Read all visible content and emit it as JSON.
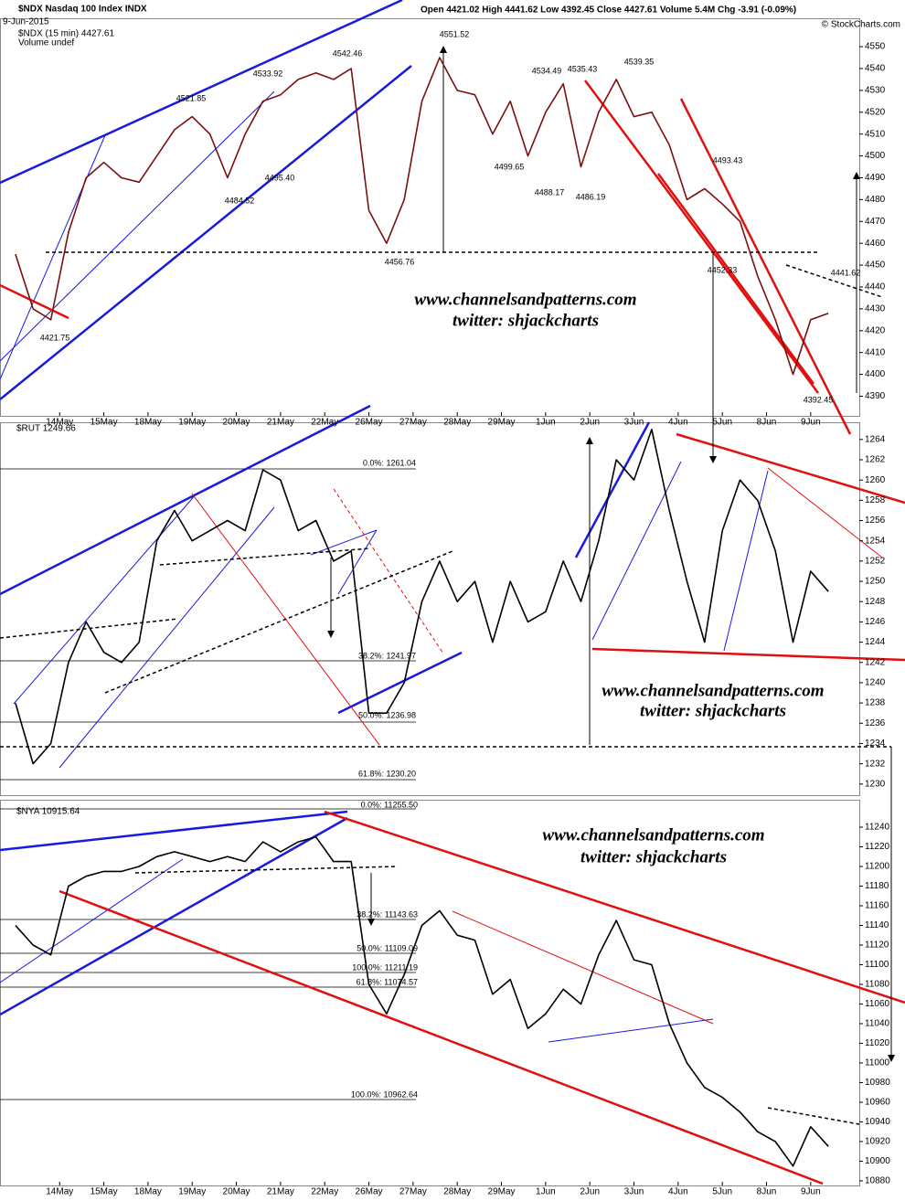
{
  "header": {
    "title": "$NDX Nasdaq 100 Index INDX",
    "date": "9-Jun-2015",
    "quote": "Open 4421.02 High 4441.62 Low 4392.45 Close 4427.61 Volume 5.4M Chg -3.91 (-0.09%)",
    "credit": "© StockCharts.com"
  },
  "chart_data": [
    {
      "type": "line",
      "title": "$NDX (15 min) 4427.61",
      "subtitle": "Volume undef",
      "watermark": [
        "www.channelsandpatterns.com",
        "twitter: shjackcharts"
      ],
      "x": [
        0,
        0.4,
        0.8,
        1.2,
        1.6,
        2,
        2.4,
        2.8,
        3.2,
        3.6,
        4,
        4.4,
        4.8,
        5.2,
        5.6,
        6,
        6.4,
        6.8,
        7.2,
        7.6,
        8,
        8.4,
        8.8,
        9.2,
        9.6,
        10,
        10.4,
        10.8,
        11.2,
        11.6,
        12,
        12.4,
        12.8,
        13.2,
        13.6,
        14,
        14.4,
        14.8,
        15.2,
        15.6,
        16,
        16.4,
        16.8,
        17.2,
        17.6,
        18,
        18.4
      ],
      "series": [
        {
          "color": "#7a1010",
          "values": [
            4455,
            4430,
            4425,
            4465,
            4490,
            4497,
            4490,
            4488,
            4500,
            4512,
            4518,
            4510,
            4490,
            4510,
            4525,
            4528,
            4535,
            4538,
            4535,
            4540,
            4475,
            4460,
            4480,
            4525,
            4545,
            4530,
            4528,
            4510,
            4525,
            4500,
            4520,
            4533,
            4495,
            4520,
            4535,
            4518,
            4520,
            4505,
            4480,
            4485,
            4478,
            4470,
            4445,
            4425,
            4400,
            4425,
            4428
          ]
        }
      ],
      "xlim": [
        -0.35,
        19.1
      ],
      "xticks": [
        {
          "value": 1,
          "label": "14May"
        },
        {
          "value": 2,
          "label": "15May"
        },
        {
          "value": 3,
          "label": "18May"
        },
        {
          "value": 4,
          "label": "19May"
        },
        {
          "value": 5,
          "label": "20May"
        },
        {
          "value": 6,
          "label": "21May"
        },
        {
          "value": 7,
          "label": "22May"
        },
        {
          "value": 8,
          "label": "26May"
        },
        {
          "value": 9,
          "label": "27May"
        },
        {
          "value": 10,
          "label": "28May"
        },
        {
          "value": 11,
          "label": "29May"
        },
        {
          "value": 12,
          "label": "1Jun"
        },
        {
          "value": 13,
          "label": "2Jun"
        },
        {
          "value": 14,
          "label": "3Jun"
        },
        {
          "value": 15,
          "label": "4Jun"
        },
        {
          "value": 16,
          "label": "5Jun"
        },
        {
          "value": 17,
          "label": "8Jun"
        },
        {
          "value": 18,
          "label": "9Jun"
        }
      ],
      "ylim": [
        4381,
        4563
      ],
      "yticks": [
        4390,
        4400,
        4410,
        4420,
        4430,
        4440,
        4450,
        4460,
        4470,
        4480,
        4490,
        4500,
        4510,
        4520,
        4530,
        4540,
        4550
      ],
      "annotations": [
        "4421.75",
        "4484.52",
        "4495.40",
        "4521.85",
        "4533.92",
        "4542.46",
        "4551.52",
        "4456.76",
        "4534.49",
        "4535.43",
        "4539.35",
        "4499.65",
        "4488.17",
        "4486.19",
        "4493.43",
        "4452.33",
        "4441.62",
        "4392.45"
      ]
    },
    {
      "type": "line",
      "title": "$RUT 1249.66",
      "watermark": [
        "www.channelsandpatterns.com",
        "twitter: shjackcharts"
      ],
      "x": [
        0,
        0.4,
        0.8,
        1.2,
        1.6,
        2,
        2.4,
        2.8,
        3.2,
        3.6,
        4,
        4.4,
        4.8,
        5.2,
        5.6,
        6,
        6.4,
        6.8,
        7.2,
        7.6,
        8,
        8.4,
        8.8,
        9.2,
        9.6,
        10,
        10.4,
        10.8,
        11.2,
        11.6,
        12,
        12.4,
        12.8,
        13.2,
        13.6,
        14,
        14.4,
        14.8,
        15.2,
        15.6,
        16,
        16.4,
        16.8,
        17.2,
        17.6,
        18,
        18.4
      ],
      "series": [
        {
          "color": "#000000",
          "values": [
            1238,
            1232,
            1234,
            1242,
            1246,
            1243,
            1242,
            1244,
            1254,
            1257,
            1254,
            1255,
            1256,
            1255,
            1261,
            1260,
            1255,
            1256,
            1252,
            1253,
            1237,
            1237,
            1240,
            1248,
            1252,
            1248,
            1250,
            1244,
            1250,
            1246,
            1247,
            1252,
            1248,
            1254,
            1262,
            1260,
            1265,
            1257,
            1250,
            1244,
            1255,
            1260,
            1258,
            1253,
            1244,
            1251,
            1249
          ]
        }
      ],
      "xlim": [
        -0.35,
        19.1
      ],
      "ylim": [
        1228.9,
        1265.7
      ],
      "yticks": [
        1230,
        1232,
        1234,
        1236,
        1238,
        1240,
        1242,
        1244,
        1246,
        1248,
        1250,
        1252,
        1254,
        1256,
        1258,
        1260,
        1262,
        1264
      ],
      "annotations": [
        "0.0%: 1261.04",
        "38.2%: 1241.97",
        "50.0%: 1236.98",
        "61.8%: 1230.20"
      ]
    },
    {
      "type": "line",
      "title": "$NYA 10915.64",
      "watermark": [
        "www.channelsandpatterns.com",
        "twitter: shjackcharts"
      ],
      "x": [
        0,
        0.4,
        0.8,
        1.2,
        1.6,
        2,
        2.4,
        2.8,
        3.2,
        3.6,
        4,
        4.4,
        4.8,
        5.2,
        5.6,
        6,
        6.4,
        6.8,
        7.2,
        7.6,
        8,
        8.4,
        8.8,
        9.2,
        9.6,
        10,
        10.4,
        10.8,
        11.2,
        11.6,
        12,
        12.4,
        12.8,
        13.2,
        13.6,
        14,
        14.4,
        14.8,
        15.2,
        15.6,
        16,
        16.4,
        16.8,
        17.2,
        17.6,
        18,
        18.4
      ],
      "series": [
        {
          "color": "#000000",
          "values": [
            11140,
            11120,
            11110,
            11180,
            11190,
            11195,
            11195,
            11200,
            11210,
            11215,
            11210,
            11205,
            11210,
            11205,
            11225,
            11215,
            11225,
            11230,
            11205,
            11205,
            11080,
            11050,
            11090,
            11140,
            11155,
            11130,
            11125,
            11070,
            11085,
            11035,
            11050,
            11075,
            11060,
            11110,
            11145,
            11105,
            11100,
            11040,
            11000,
            10975,
            10965,
            10950,
            10930,
            10920,
            10895,
            10935,
            10915
          ]
        }
      ],
      "xlim": [
        -0.35,
        19.1
      ],
      "xticks": [
        {
          "value": 1,
          "label": "14May"
        },
        {
          "value": 2,
          "label": "15May"
        },
        {
          "value": 3,
          "label": "18May"
        },
        {
          "value": 4,
          "label": "19May"
        },
        {
          "value": 5,
          "label": "20May"
        },
        {
          "value": 6,
          "label": "21May"
        },
        {
          "value": 7,
          "label": "22May"
        },
        {
          "value": 8,
          "label": "26May"
        },
        {
          "value": 9,
          "label": "27May"
        },
        {
          "value": 10,
          "label": "28May"
        },
        {
          "value": 11,
          "label": "29May"
        },
        {
          "value": 12,
          "label": "1Jun"
        },
        {
          "value": 13,
          "label": "2Jun"
        },
        {
          "value": 14,
          "label": "3Jun"
        },
        {
          "value": 15,
          "label": "4Jun"
        },
        {
          "value": 16,
          "label": "5Jun"
        },
        {
          "value": 17,
          "label": "8Jun"
        },
        {
          "value": 18,
          "label": "9Jun"
        }
      ],
      "ylim": [
        10875.3,
        11267.9
      ],
      "yticks": [
        10880,
        10900,
        10920,
        10940,
        10960,
        10980,
        11000,
        11020,
        11040,
        11060,
        11080,
        11100,
        11120,
        11140,
        11160,
        11180,
        11200,
        11220,
        11240
      ],
      "annotations": [
        "0.0%: 11255.50",
        "38.2%: 11143.63",
        "50.0%: 11109.09",
        "100.0%: 11211.19",
        "61.8%: 11074.57",
        "100.0%: 10962.64"
      ]
    }
  ]
}
